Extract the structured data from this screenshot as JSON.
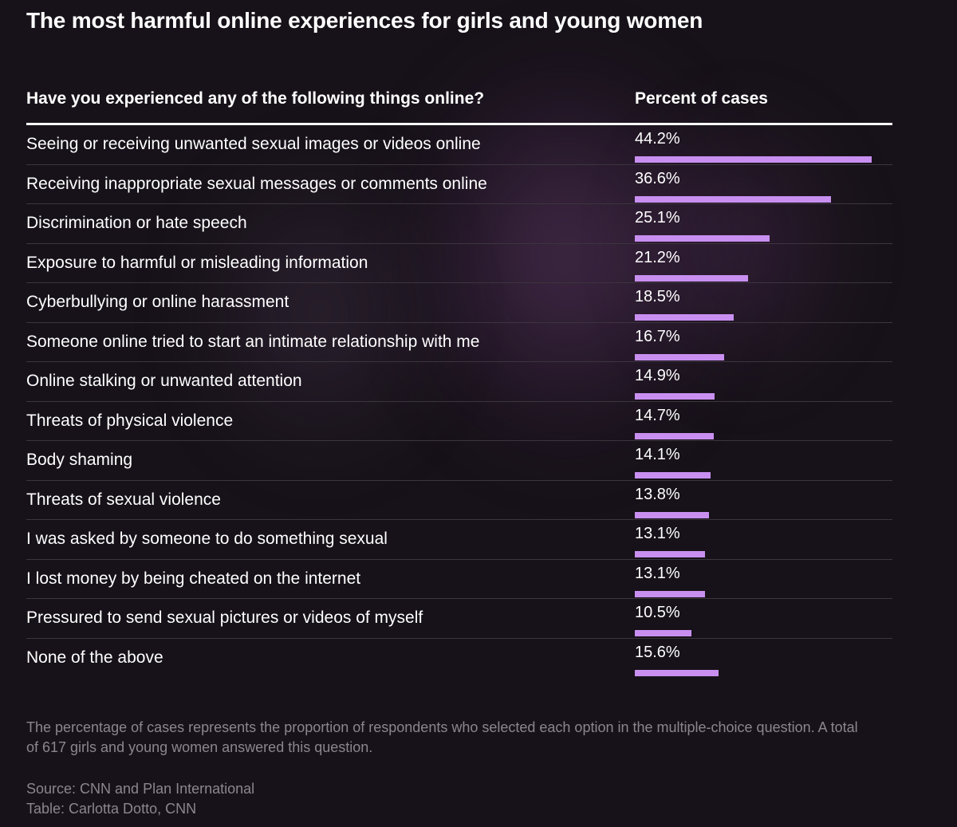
{
  "title": "The most harmful online experiences for girls and young women",
  "columns": {
    "question": "Have you experienced any of the following things online?",
    "percent": "Percent of cases"
  },
  "note": "The percentage of cases represents the proportion of respondents who selected each option in the multiple-choice question. A total of 617 girls and young women answered this question.",
  "source": "Source: CNN and Plan International",
  "credit": "Table: Carlotta Dotto, CNN",
  "colors": {
    "bar": "#c88ff0",
    "background": "#171219"
  },
  "chart_data": {
    "type": "table",
    "title": "The most harmful online experiences for girls and young women",
    "columns": [
      "Have you experienced any of the following things online?",
      "Percent of cases"
    ],
    "categories": [
      "Seeing or receiving unwanted sexual images or videos online",
      "Receiving inappropriate sexual messages or comments online",
      "Discrimination or hate speech",
      "Exposure to harmful or misleading information",
      "Cyberbullying or online harassment",
      "Someone online tried to start an intimate relationship with me",
      "Online stalking or unwanted attention",
      "Threats of physical violence",
      "Body shaming",
      "Threats of sexual violence",
      "I was asked by someone to do something sexual",
      "I lost money by being cheated on the internet",
      "Pressured to send sexual pictures or videos of myself",
      "None of the above"
    ],
    "values": [
      44.2,
      36.6,
      25.1,
      21.2,
      18.5,
      16.7,
      14.9,
      14.7,
      14.1,
      13.8,
      13.1,
      13.1,
      10.5,
      15.6
    ],
    "value_labels": [
      "44.2%",
      "36.6%",
      "25.1%",
      "21.2%",
      "18.5%",
      "16.7%",
      "14.9%",
      "14.7%",
      "14.1%",
      "13.8%",
      "13.1%",
      "13.1%",
      "10.5%",
      "15.6%"
    ]
  }
}
